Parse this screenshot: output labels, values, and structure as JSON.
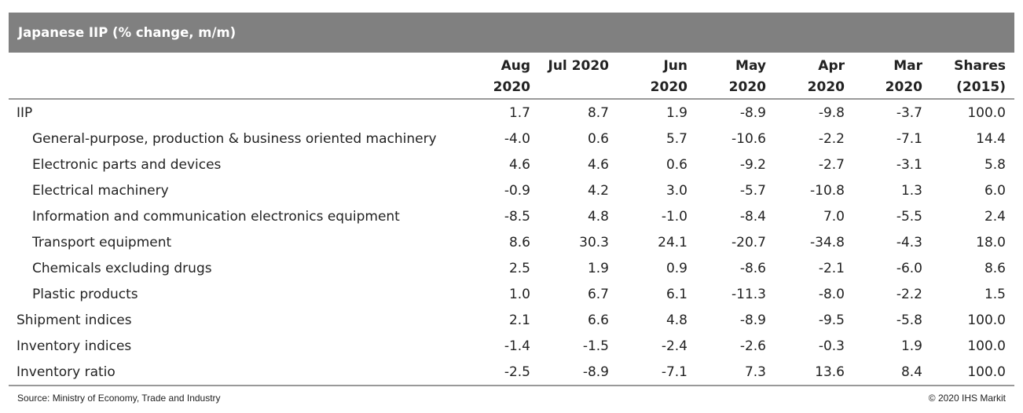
{
  "chart_data": {
    "type": "table",
    "title": "Japanese IIP (% change, m/m)",
    "columns": [
      {
        "line1": "Aug",
        "line2": "2020"
      },
      {
        "line1": "Jul 2020",
        "line2": ""
      },
      {
        "line1": "Jun",
        "line2": "2020"
      },
      {
        "line1": "May",
        "line2": "2020"
      },
      {
        "line1": "Apr",
        "line2": "2020"
      },
      {
        "line1": "Mar",
        "line2": "2020"
      },
      {
        "line1": "Shares",
        "line2": "(2015)"
      }
    ],
    "rows": [
      {
        "label": "IIP",
        "sub": false,
        "values": [
          "1.7",
          "8.7",
          "1.9",
          "-8.9",
          "-9.8",
          "-3.7",
          "100.0"
        ]
      },
      {
        "label": "General-purpose, production & business oriented machinery",
        "sub": true,
        "values": [
          "-4.0",
          "0.6",
          "5.7",
          "-10.6",
          "-2.2",
          "-7.1",
          "14.4"
        ]
      },
      {
        "label": "Electronic parts and devices",
        "sub": true,
        "values": [
          "4.6",
          "4.6",
          "0.6",
          "-9.2",
          "-2.7",
          "-3.1",
          "5.8"
        ]
      },
      {
        "label": "Electrical machinery",
        "sub": true,
        "values": [
          "-0.9",
          "4.2",
          "3.0",
          "-5.7",
          "-10.8",
          "1.3",
          "6.0"
        ]
      },
      {
        "label": "Information and communication electronics equipment",
        "sub": true,
        "values": [
          "-8.5",
          "4.8",
          "-1.0",
          "-8.4",
          "7.0",
          "-5.5",
          "2.4"
        ]
      },
      {
        "label": "Transport equipment",
        "sub": true,
        "values": [
          "8.6",
          "30.3",
          "24.1",
          "-20.7",
          "-34.8",
          "-4.3",
          "18.0"
        ]
      },
      {
        "label": "Chemicals excluding drugs",
        "sub": true,
        "values": [
          "2.5",
          "1.9",
          "0.9",
          "-8.6",
          "-2.1",
          "-6.0",
          "8.6"
        ]
      },
      {
        "label": "Plastic products",
        "sub": true,
        "values": [
          "1.0",
          "6.7",
          "6.1",
          "-11.3",
          "-8.0",
          "-2.2",
          "1.5"
        ]
      },
      {
        "label": "Shipment indices",
        "sub": false,
        "values": [
          "2.1",
          "6.6",
          "4.8",
          "-8.9",
          "-9.5",
          "-5.8",
          "100.0"
        ]
      },
      {
        "label": "Inventory indices",
        "sub": false,
        "values": [
          "-1.4",
          "-1.5",
          "-2.4",
          "-2.6",
          "-0.3",
          "1.9",
          "100.0"
        ]
      },
      {
        "label": "Inventory ratio",
        "sub": false,
        "values": [
          "-2.5",
          "-8.9",
          "-7.1",
          "7.3",
          "13.6",
          "8.4",
          "100.0"
        ]
      }
    ]
  },
  "footer": {
    "source": "Source: Ministry of Economy, Trade and Industry",
    "copyright": "© 2020 IHS Markit"
  },
  "colors": {
    "title_bar": "#808080",
    "rule": "#999999"
  }
}
